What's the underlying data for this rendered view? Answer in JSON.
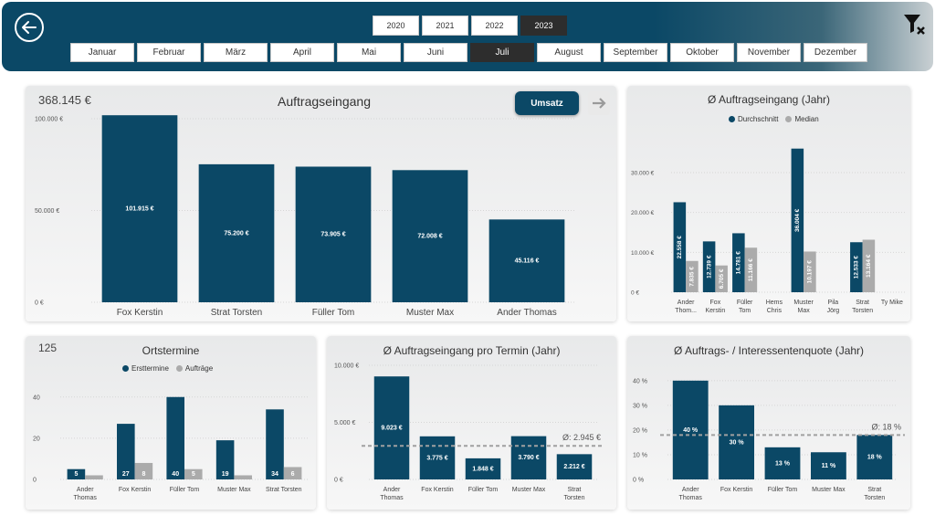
{
  "header": {
    "years": [
      "2020",
      "2021",
      "2022",
      "2023"
    ],
    "selected_year": "2023",
    "months": [
      "Januar",
      "Februar",
      "März",
      "April",
      "Mai",
      "Juni",
      "Juli",
      "August",
      "September",
      "Oktober",
      "November",
      "Dezember"
    ],
    "selected_month": "Juli"
  },
  "colors": {
    "primary": "#0b4866",
    "secondary": "#ababab",
    "header": "#0b4866",
    "ref_line": "#a0a0a0"
  },
  "icons": {
    "back": "back-arrow-circle-icon",
    "filter": "clear-filter-icon",
    "next": "arrow-right-icon"
  },
  "panel1": {
    "kpi": "368.145 €",
    "title": "Auftragseingang",
    "button": "Umsatz"
  },
  "panel2": {
    "title": "Ø Auftragseingang (Jahr)",
    "legend": [
      "Durchschnitt",
      "Median"
    ]
  },
  "panel3": {
    "kpi": "125",
    "title": "Ortstermine",
    "legend": [
      "Ersttermine",
      "Aufträge"
    ]
  },
  "panel4": {
    "title": "Ø Auftragseingang pro Termin (Jahr)",
    "ref_label": "Ø: 2.945 €"
  },
  "panel5": {
    "title": "Ø Auftrags- / Interessentenquote (Jahr)",
    "ref_label": "Ø: 18 %"
  },
  "chart_data": [
    {
      "id": "auftragseingang",
      "type": "bar",
      "categories": [
        "Fox Kerstin",
        "Strat Torsten",
        "Füller Tom",
        "Muster Max",
        "Ander Thomas"
      ],
      "values": [
        101915,
        75200,
        73905,
        72008,
        45116
      ],
      "labels": [
        "101.915 €",
        "75.200 €",
        "73.905 €",
        "72.008 €",
        "45.116 €"
      ],
      "yticks": [
        0,
        50000,
        100000
      ],
      "ytick_labels": [
        "0 €",
        "50.000 €",
        "100.000 €"
      ],
      "ylim": [
        0,
        105000
      ]
    },
    {
      "id": "avg_auftragseingang",
      "type": "bar",
      "categories": [
        [
          "Ander",
          "Thom..."
        ],
        [
          "Fox",
          "Kerstin"
        ],
        [
          "Füller",
          "Tom"
        ],
        [
          "Hems",
          "Chris"
        ],
        [
          "Muster",
          "Max"
        ],
        [
          "Pila",
          "Jörg"
        ],
        [
          "Strat",
          "Torsten"
        ],
        [
          "Ty Mike"
        ]
      ],
      "series": [
        {
          "name": "Durchschnitt",
          "values": [
            22558,
            12739,
            14781,
            null,
            36004,
            null,
            12533,
            null
          ],
          "labels": [
            "22.558 €",
            "12.739 €",
            "14.781 €",
            "",
            "36.004 €",
            "",
            "12.533 €",
            ""
          ]
        },
        {
          "name": "Median",
          "values": [
            7835,
            6705,
            11166,
            null,
            10197,
            null,
            13164,
            null
          ],
          "labels": [
            "7.835 €",
            "6.705 €",
            "11.166 €",
            "",
            "10.197 €",
            "",
            "13.164 €",
            ""
          ]
        }
      ],
      "yticks": [
        0,
        10000,
        20000,
        30000
      ],
      "ytick_labels": [
        "0 €",
        "10.000 €",
        "20.000 €",
        "30.000 €"
      ],
      "ylim": [
        0,
        38000
      ]
    },
    {
      "id": "ortstermine",
      "type": "bar",
      "categories": [
        [
          "Ander",
          "Thomas"
        ],
        [
          "Fox Kerstin"
        ],
        [
          "Füller Tom"
        ],
        [
          "Muster Max"
        ],
        [
          "Strat Torsten"
        ]
      ],
      "series": [
        {
          "name": "Ersttermine",
          "values": [
            5,
            27,
            40,
            19,
            34
          ],
          "labels": [
            "5",
            "27",
            "40",
            "19",
            "34"
          ]
        },
        {
          "name": "Aufträge",
          "values": [
            2,
            8,
            5,
            2,
            6
          ],
          "labels": [
            "",
            "8",
            "5",
            "",
            "6"
          ]
        }
      ],
      "yticks": [
        0,
        20,
        40
      ],
      "ytick_labels": [
        "0",
        "20",
        "40"
      ],
      "ylim": [
        0,
        43
      ]
    },
    {
      "id": "avg_pro_termin",
      "type": "bar",
      "categories": [
        [
          "Ander",
          "Thomas"
        ],
        [
          "Fox Kerstin"
        ],
        [
          "Füller Tom"
        ],
        [
          "Muster Max"
        ],
        [
          "Strat",
          "Torsten"
        ]
      ],
      "values": [
        9023,
        3775,
        1848,
        3790,
        2212
      ],
      "labels": [
        "9.023 €",
        "3.775 €",
        "1.848 €",
        "3.790 €",
        "2.212 €"
      ],
      "reference": 2945,
      "yticks": [
        0,
        5000,
        10000
      ],
      "ytick_labels": [
        "0 €",
        "5.000 €",
        "10.000 €"
      ],
      "ylim": [
        0,
        10000
      ]
    },
    {
      "id": "quote",
      "type": "bar",
      "categories": [
        [
          "Ander",
          "Thomas"
        ],
        [
          "Fox Kerstin"
        ],
        [
          "Füller Tom"
        ],
        [
          "Muster Max"
        ],
        [
          "Strat",
          "Torsten"
        ]
      ],
      "values": [
        40,
        30,
        13,
        11,
        18
      ],
      "labels": [
        "40 %",
        "30 %",
        "13 %",
        "11 %",
        "18 %"
      ],
      "reference": 18,
      "yticks": [
        0,
        10,
        20,
        30,
        40
      ],
      "ytick_labels": [
        "0 %",
        "10 %",
        "20 %",
        "30 %",
        "40 %"
      ],
      "ylim": [
        0,
        44
      ]
    }
  ]
}
